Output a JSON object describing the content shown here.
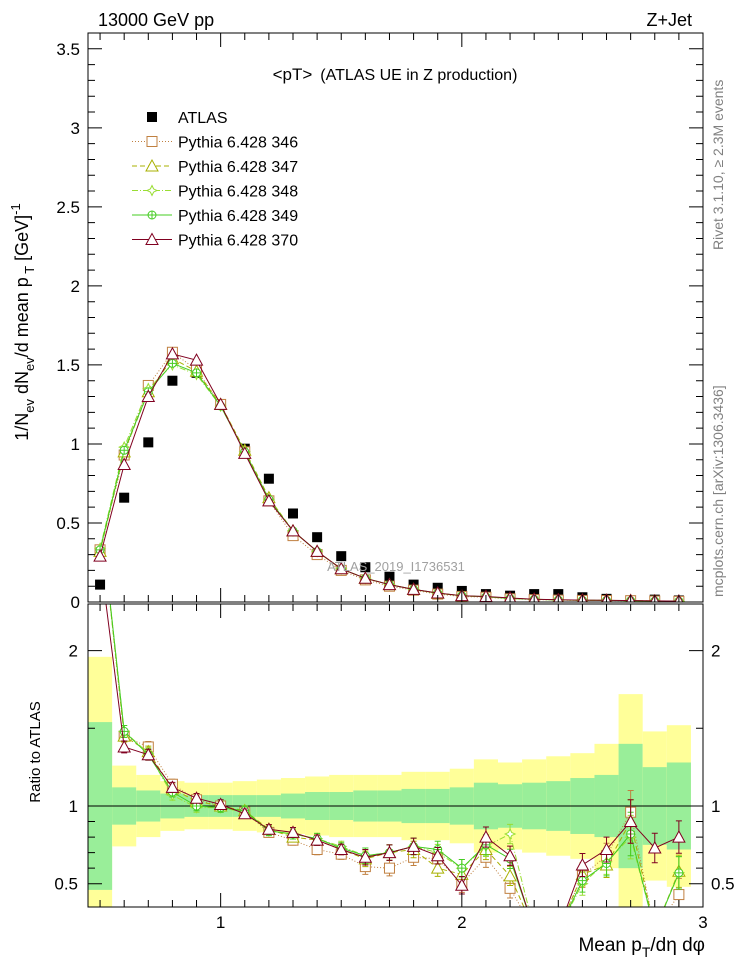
{
  "header": {
    "left": "13000 GeV pp",
    "right": "Z+Jet",
    "title": "<pT>",
    "subtitle": "(ATLAS UE in Z production)"
  },
  "side_text": {
    "rivet": "Rivet 3.1.10, ≥ 2.3M events",
    "mcplots": "mcplots.cern.ch [arXiv:1306.3436]"
  },
  "watermark": "ATLAS_2019_I1736531",
  "colors": {
    "band_inner": "#99ee99",
    "band_outer": "#ffff99",
    "data": "#000000",
    "p346": "#c08040",
    "p347": "#a8b000",
    "p348": "#99dd33",
    "p349": "#44cc22",
    "p370": "#800020"
  },
  "chart_data": [
    {
      "id": "main",
      "type": "scatter",
      "ylabel": "1/N_ev dN_ev/d mean p_T [GeV]^-1",
      "xlim": [
        0.45,
        3.0
      ],
      "ylim": [
        0,
        3.6
      ],
      "yticks": [
        "0",
        "0.5",
        "1",
        "1.5",
        "2",
        "2.5",
        "3",
        "3.5"
      ],
      "x": [
        0.5,
        0.6,
        0.7,
        0.8,
        0.9,
        1.0,
        1.1,
        1.2,
        1.3,
        1.4,
        1.5,
        1.6,
        1.7,
        1.8,
        1.9,
        2.0,
        2.1,
        2.2,
        2.3,
        2.4,
        2.5,
        2.6,
        2.7,
        2.8,
        2.9
      ],
      "series": [
        {
          "name": "ATLAS",
          "key": "data",
          "marker": "square_filled",
          "values": [
            0.11,
            0.66,
            1.01,
            1.4,
            1.45,
            1.25,
            0.97,
            0.78,
            0.56,
            0.41,
            0.29,
            0.22,
            0.16,
            0.11,
            0.09,
            0.07,
            0.05,
            0.04,
            0.05,
            0.05,
            0.03,
            0.02,
            0.01,
            0.015,
            0.01
          ]
        },
        {
          "name": "Pythia 6.428 346",
          "key": "p346",
          "marker": "square_open",
          "dash": "1,2",
          "values": [
            0.33,
            0.93,
            1.37,
            1.58,
            1.47,
            1.25,
            0.95,
            0.64,
            0.42,
            0.3,
            0.2,
            0.14,
            0.1,
            0.075,
            0.05,
            0.035,
            0.03,
            0.02,
            0.015,
            0.012,
            0.01,
            0.009,
            0.008,
            0.006,
            0.004
          ]
        },
        {
          "name": "Pythia 6.428 347",
          "key": "p347",
          "marker": "triangle_open",
          "dash": "5,3",
          "values": [
            0.32,
            0.95,
            1.33,
            1.54,
            1.46,
            1.25,
            0.96,
            0.66,
            0.45,
            0.32,
            0.21,
            0.15,
            0.11,
            0.08,
            0.055,
            0.04,
            0.033,
            0.022,
            0.017,
            0.013,
            0.011,
            0.01,
            0.009,
            0.007,
            0.005
          ]
        },
        {
          "name": "Pythia 6.428 348",
          "key": "p348",
          "marker": "star_open",
          "dash": "6,2,1,2",
          "values": [
            0.34,
            0.98,
            1.35,
            1.5,
            1.44,
            1.24,
            0.95,
            0.65,
            0.45,
            0.32,
            0.21,
            0.15,
            0.11,
            0.08,
            0.055,
            0.04,
            0.032,
            0.022,
            0.017,
            0.013,
            0.011,
            0.01,
            0.008,
            0.006,
            0.005
          ]
        },
        {
          "name": "Pythia 6.428 349",
          "key": "p349",
          "marker": "circle_plus",
          "dash": "",
          "values": [
            0.33,
            0.96,
            1.33,
            1.51,
            1.45,
            1.24,
            0.95,
            0.65,
            0.45,
            0.32,
            0.21,
            0.15,
            0.11,
            0.08,
            0.056,
            0.04,
            0.033,
            0.023,
            0.017,
            0.013,
            0.011,
            0.01,
            0.008,
            0.006,
            0.005
          ]
        },
        {
          "name": "Pythia 6.428 370",
          "key": "p370",
          "marker": "triangle_open",
          "dash": "",
          "values": [
            0.29,
            0.87,
            1.3,
            1.57,
            1.53,
            1.25,
            0.94,
            0.64,
            0.45,
            0.32,
            0.21,
            0.15,
            0.11,
            0.08,
            0.057,
            0.04,
            0.035,
            0.025,
            0.018,
            0.014,
            0.012,
            0.011,
            0.009,
            0.007,
            0.006
          ]
        }
      ]
    },
    {
      "id": "ratio",
      "type": "line",
      "xlabel": "Mean p_T/dη dφ",
      "ylabel": "Ratio to ATLAS",
      "xlim": [
        0.45,
        3.0
      ],
      "ylim": [
        0.35,
        2.3
      ],
      "xticks": [
        "1",
        "2",
        "3"
      ],
      "yticks": [
        "0.5",
        "1",
        "2"
      ],
      "reference": 1.0,
      "band_inner": [
        0.54,
        0.12,
        0.1,
        0.08,
        0.07,
        0.07,
        0.07,
        0.07,
        0.08,
        0.09,
        0.09,
        0.1,
        0.1,
        0.11,
        0.11,
        0.12,
        0.15,
        0.14,
        0.15,
        0.16,
        0.18,
        0.2,
        0.4,
        0.25,
        0.28
      ],
      "band_outer": [
        0.96,
        0.26,
        0.2,
        0.16,
        0.15,
        0.15,
        0.16,
        0.17,
        0.18,
        0.19,
        0.2,
        0.2,
        0.2,
        0.22,
        0.22,
        0.24,
        0.3,
        0.28,
        0.3,
        0.32,
        0.34,
        0.4,
        0.72,
        0.48,
        0.52
      ],
      "x": [
        0.5,
        0.6,
        0.7,
        0.8,
        0.9,
        1.0,
        1.1,
        1.2,
        1.3,
        1.4,
        1.5,
        1.6,
        1.7,
        1.8,
        1.9,
        2.0,
        2.1,
        2.2,
        2.3,
        2.4,
        2.5,
        2.6,
        2.7,
        2.8,
        2.9
      ],
      "series": [
        {
          "key": "p346",
          "values": [
            2.9,
            1.45,
            1.38,
            1.14,
            1.04,
            1.0,
            0.96,
            0.83,
            0.78,
            0.72,
            0.69,
            0.61,
            0.6,
            0.67,
            0.66,
            0.5,
            0.67,
            0.47,
            0.2,
            0.2,
            0.55,
            0.68,
            0.96,
            0.2,
            0.43
          ]
        },
        {
          "key": "p347",
          "values": [
            2.9,
            1.45,
            1.35,
            1.11,
            1.03,
            1.0,
            0.97,
            0.85,
            0.8,
            0.78,
            0.72,
            0.66,
            0.7,
            0.72,
            0.6,
            0.56,
            0.72,
            0.55,
            0.2,
            0.2,
            0.56,
            0.62,
            0.9,
            0.2,
            0.58
          ]
        },
        {
          "key": "p348",
          "values": [
            2.9,
            1.48,
            1.34,
            1.07,
            0.99,
            0.99,
            0.96,
            0.84,
            0.82,
            0.79,
            0.74,
            0.68,
            0.7,
            0.74,
            0.7,
            0.6,
            0.74,
            0.82,
            0.2,
            0.2,
            0.5,
            0.64,
            0.8,
            0.2,
            0.57
          ]
        },
        {
          "key": "p349",
          "values": [
            2.9,
            1.48,
            1.33,
            1.09,
            1.0,
            0.99,
            0.97,
            0.84,
            0.82,
            0.79,
            0.73,
            0.68,
            0.7,
            0.74,
            0.72,
            0.6,
            0.75,
            0.66,
            0.2,
            0.2,
            0.52,
            0.63,
            0.82,
            0.2,
            0.57
          ]
        },
        {
          "key": "p370",
          "values": [
            2.6,
            1.38,
            1.33,
            1.12,
            1.05,
            1.01,
            0.95,
            0.85,
            0.83,
            0.78,
            0.72,
            0.67,
            0.7,
            0.74,
            0.68,
            0.49,
            0.8,
            0.68,
            0.2,
            0.2,
            0.62,
            0.72,
            0.9,
            0.73,
            0.8
          ]
        }
      ]
    }
  ]
}
